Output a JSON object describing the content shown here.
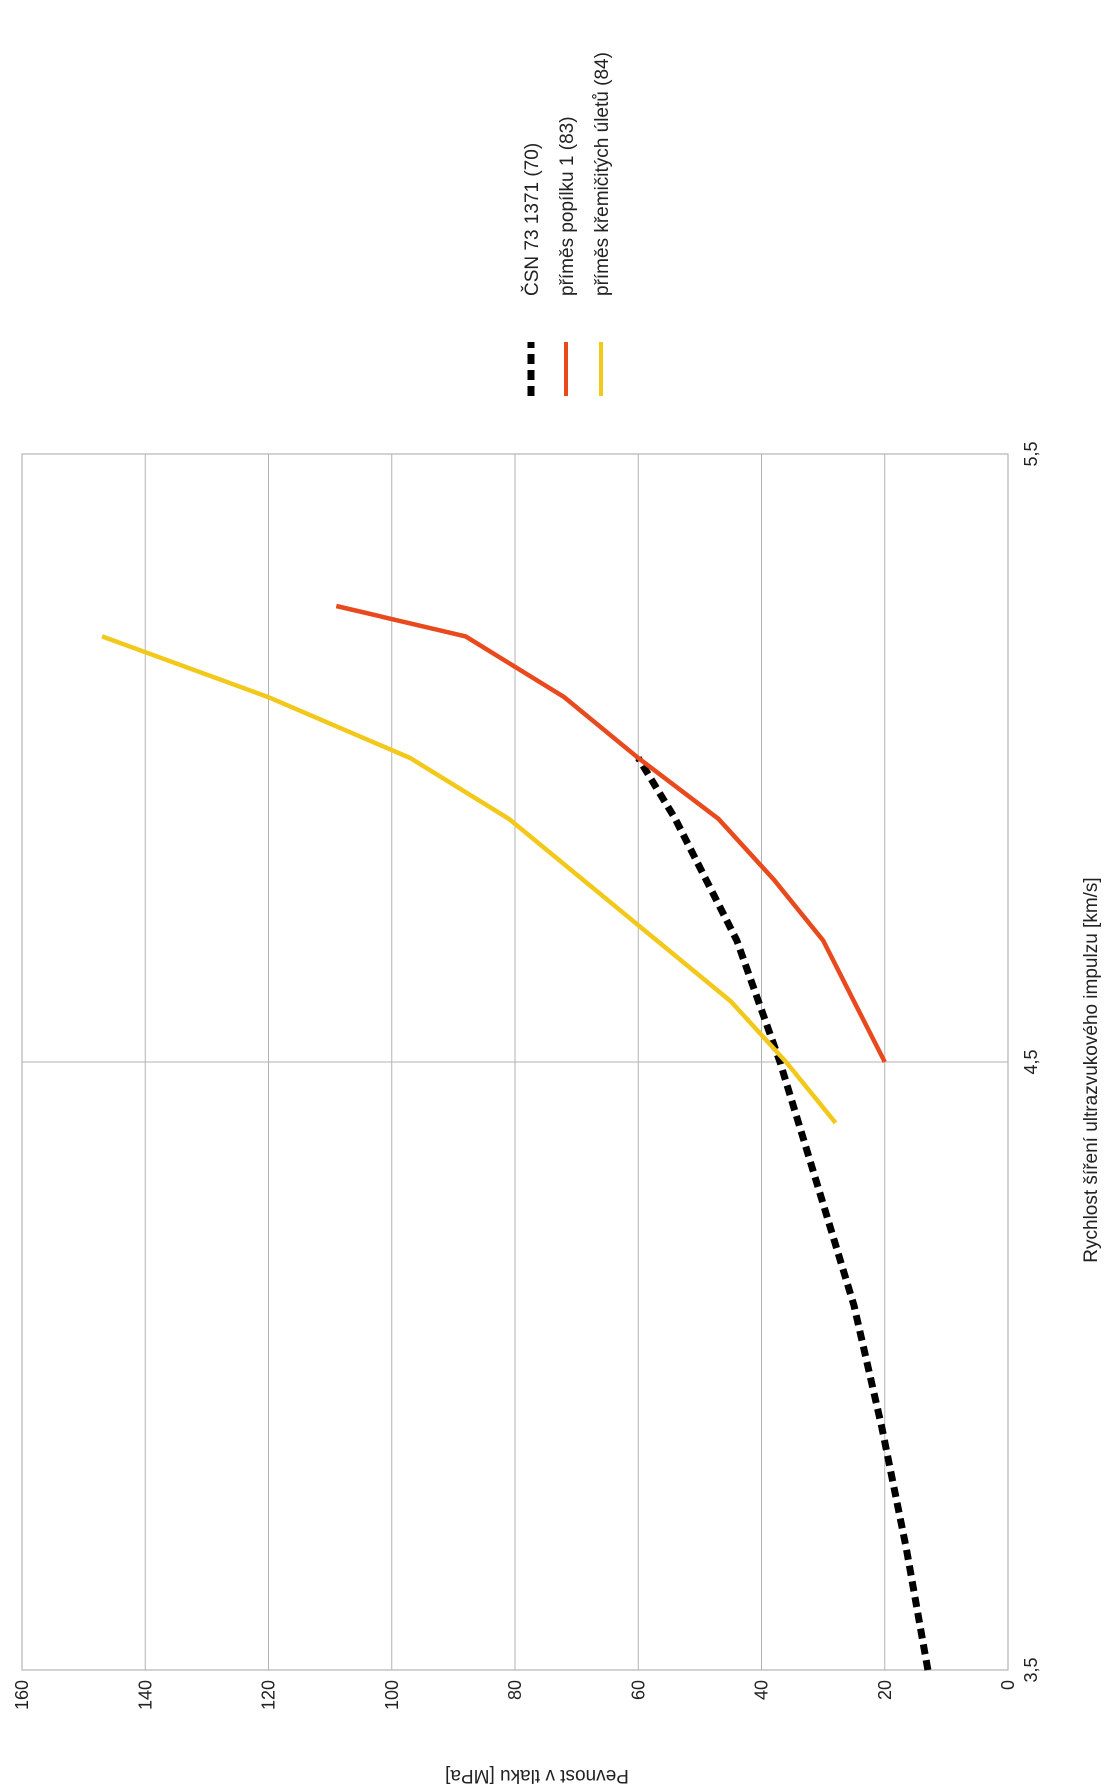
{
  "chart_data": {
    "type": "line",
    "xlabel": "Rychlost šíření ultrazvukového impulzu [km/s]",
    "ylabel": "Pevnost v tlaku [MPa]",
    "xlim": [
      3.5,
      5.5
    ],
    "ylim": [
      0,
      160
    ],
    "x_ticks": [
      "3,5",
      "4,5",
      "5,5"
    ],
    "y_ticks": [
      "0",
      "20",
      "40",
      "60",
      "80",
      "100",
      "120",
      "140",
      "160"
    ],
    "grid": true,
    "legend_position": "right",
    "rotation": "90deg clockwise",
    "series": [
      {
        "name": "ČSN 73 1371 (70)",
        "color": "#000000",
        "dash": true,
        "x": [
          3.5,
          3.7,
          3.9,
          4.1,
          4.3,
          4.5,
          4.7,
          4.9,
          5.0
        ],
        "y": [
          13,
          16.5,
          20.5,
          25,
          31,
          37,
          44,
          54,
          60
        ]
      },
      {
        "name": "příměs popílku 1 (83)",
        "color": "#e8491d",
        "dash": false,
        "x": [
          4.5,
          4.6,
          4.7,
          4.8,
          4.9,
          5.0,
          5.1,
          5.2,
          5.25
        ],
        "y": [
          20,
          25,
          30,
          38,
          47,
          60,
          72,
          88,
          109
        ]
      },
      {
        "name": "příměs křemičitých úletů (84)",
        "color": "#f2c81a",
        "dash": false,
        "x": [
          4.4,
          4.5,
          4.6,
          4.7,
          4.8,
          4.9,
          5.0,
          5.1,
          5.2
        ],
        "y": [
          28,
          36,
          45,
          57,
          69,
          81,
          97,
          120,
          147
        ]
      }
    ]
  }
}
